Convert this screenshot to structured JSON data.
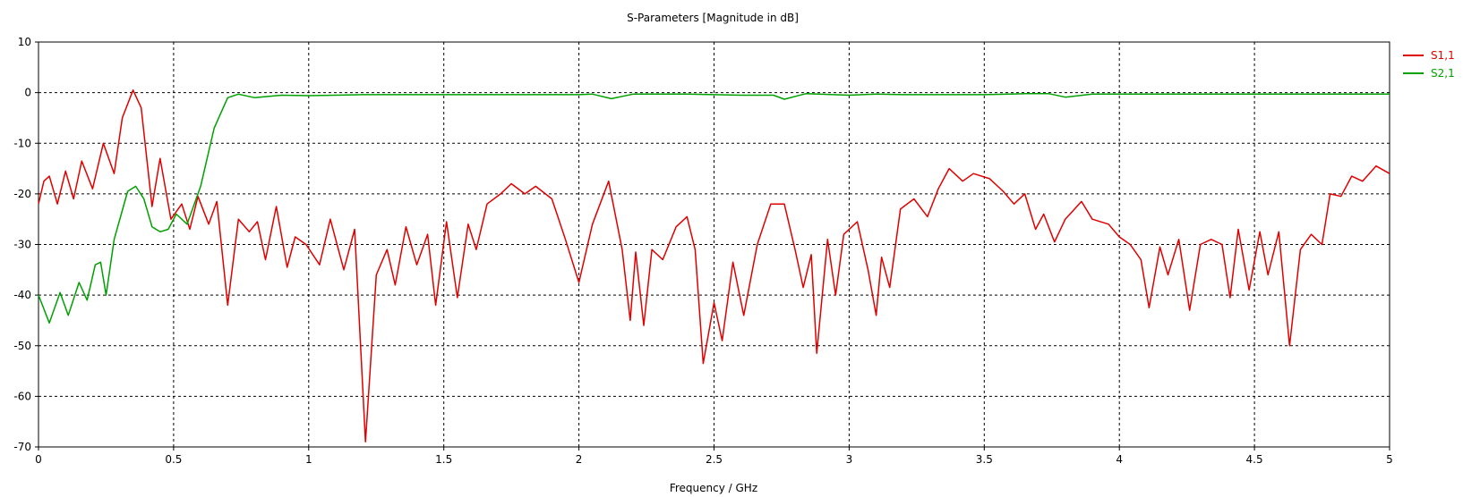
{
  "chart_data": {
    "type": "line",
    "title": "S-Parameters [Magnitude in dB]",
    "xlabel": "Frequency / GHz",
    "ylabel": "",
    "xlim": [
      0,
      5
    ],
    "ylim": [
      -70,
      10
    ],
    "xticks": [
      0,
      0.5,
      1,
      1.5,
      2,
      2.5,
      3,
      3.5,
      4,
      4.5,
      5
    ],
    "yticks": [
      10,
      0,
      -10,
      -20,
      -30,
      -40,
      -50,
      -60,
      -70
    ],
    "x_tick_labels": [
      "0",
      "0.5",
      "1",
      "1.5",
      "2",
      "2.5",
      "3",
      "3.5",
      "4",
      "4.5",
      "5"
    ],
    "y_tick_labels": [
      "10",
      "0",
      "-10",
      "-20",
      "-30",
      "-40",
      "-50",
      "-60",
      "-70"
    ],
    "grid": true,
    "legend_position": "top-right",
    "series": [
      {
        "name": "S1,1",
        "color": "#e00000",
        "points": [
          [
            0.0,
            -22
          ],
          [
            0.02,
            -17.5
          ],
          [
            0.04,
            -16.5
          ],
          [
            0.07,
            -22
          ],
          [
            0.1,
            -15.5
          ],
          [
            0.13,
            -21
          ],
          [
            0.16,
            -13.5
          ],
          [
            0.2,
            -19
          ],
          [
            0.24,
            -10
          ],
          [
            0.28,
            -16
          ],
          [
            0.31,
            -5
          ],
          [
            0.35,
            0.5
          ],
          [
            0.38,
            -3
          ],
          [
            0.42,
            -22.5
          ],
          [
            0.45,
            -13
          ],
          [
            0.49,
            -25
          ],
          [
            0.53,
            -22
          ],
          [
            0.56,
            -27
          ],
          [
            0.59,
            -20.5
          ],
          [
            0.63,
            -26
          ],
          [
            0.66,
            -21.5
          ],
          [
            0.7,
            -42
          ],
          [
            0.74,
            -25
          ],
          [
            0.78,
            -27.5
          ],
          [
            0.81,
            -25.5
          ],
          [
            0.84,
            -33
          ],
          [
            0.88,
            -22.5
          ],
          [
            0.92,
            -34.5
          ],
          [
            0.95,
            -28.5
          ],
          [
            0.99,
            -30
          ],
          [
            1.04,
            -34
          ],
          [
            1.08,
            -25
          ],
          [
            1.13,
            -35
          ],
          [
            1.17,
            -27
          ],
          [
            1.21,
            -69
          ],
          [
            1.25,
            -36
          ],
          [
            1.29,
            -31
          ],
          [
            1.32,
            -38
          ],
          [
            1.36,
            -26.5
          ],
          [
            1.4,
            -34
          ],
          [
            1.44,
            -28
          ],
          [
            1.47,
            -42
          ],
          [
            1.51,
            -25.5
          ],
          [
            1.55,
            -40.5
          ],
          [
            1.59,
            -26
          ],
          [
            1.62,
            -31
          ],
          [
            1.66,
            -22
          ],
          [
            1.71,
            -20
          ],
          [
            1.75,
            -18
          ],
          [
            1.8,
            -20
          ],
          [
            1.84,
            -18.5
          ],
          [
            1.9,
            -21
          ],
          [
            1.95,
            -29
          ],
          [
            2.0,
            -37.5
          ],
          [
            2.05,
            -26
          ],
          [
            2.11,
            -17.5
          ],
          [
            2.16,
            -31
          ],
          [
            2.19,
            -45
          ],
          [
            2.21,
            -31.5
          ],
          [
            2.24,
            -46
          ],
          [
            2.27,
            -31
          ],
          [
            2.31,
            -33
          ],
          [
            2.36,
            -26.5
          ],
          [
            2.4,
            -24.5
          ],
          [
            2.43,
            -31
          ],
          [
            2.46,
            -53.5
          ],
          [
            2.5,
            -41.5
          ],
          [
            2.53,
            -49
          ],
          [
            2.57,
            -33.5
          ],
          [
            2.61,
            -44
          ],
          [
            2.66,
            -30
          ],
          [
            2.71,
            -22
          ],
          [
            2.76,
            -22
          ],
          [
            2.8,
            -31
          ],
          [
            2.83,
            -38.5
          ],
          [
            2.86,
            -32
          ],
          [
            2.88,
            -51.5
          ],
          [
            2.92,
            -29
          ],
          [
            2.95,
            -40
          ],
          [
            2.98,
            -28
          ],
          [
            3.03,
            -25.5
          ],
          [
            3.07,
            -35
          ],
          [
            3.1,
            -44
          ],
          [
            3.12,
            -32.5
          ],
          [
            3.15,
            -38.5
          ],
          [
            3.19,
            -23
          ],
          [
            3.24,
            -21
          ],
          [
            3.29,
            -24.5
          ],
          [
            3.33,
            -19
          ],
          [
            3.37,
            -15
          ],
          [
            3.42,
            -17.5
          ],
          [
            3.46,
            -16
          ],
          [
            3.52,
            -17
          ],
          [
            3.57,
            -19.5
          ],
          [
            3.61,
            -22
          ],
          [
            3.65,
            -20
          ],
          [
            3.69,
            -27
          ],
          [
            3.72,
            -24
          ],
          [
            3.76,
            -29.5
          ],
          [
            3.8,
            -25
          ],
          [
            3.86,
            -21.5
          ],
          [
            3.9,
            -25
          ],
          [
            3.96,
            -26
          ],
          [
            4.0,
            -28.5
          ],
          [
            4.04,
            -30
          ],
          [
            4.08,
            -33
          ],
          [
            4.11,
            -42.5
          ],
          [
            4.15,
            -30.5
          ],
          [
            4.18,
            -36
          ],
          [
            4.22,
            -29
          ],
          [
            4.26,
            -43
          ],
          [
            4.3,
            -30
          ],
          [
            4.34,
            -29
          ],
          [
            4.38,
            -30
          ],
          [
            4.41,
            -40.5
          ],
          [
            4.44,
            -27
          ],
          [
            4.48,
            -39
          ],
          [
            4.52,
            -27.5
          ],
          [
            4.55,
            -36
          ],
          [
            4.59,
            -27.5
          ],
          [
            4.63,
            -50
          ],
          [
            4.67,
            -31
          ],
          [
            4.71,
            -28
          ],
          [
            4.75,
            -30
          ],
          [
            4.78,
            -20
          ],
          [
            4.82,
            -20.5
          ],
          [
            4.86,
            -16.5
          ],
          [
            4.9,
            -17.5
          ],
          [
            4.95,
            -14.5
          ],
          [
            5.0,
            -16
          ]
        ]
      },
      {
        "name": "S2,1",
        "color": "#00a000",
        "points": [
          [
            0.0,
            -40
          ],
          [
            0.04,
            -45.5
          ],
          [
            0.08,
            -39.5
          ],
          [
            0.11,
            -44
          ],
          [
            0.15,
            -37.5
          ],
          [
            0.18,
            -41
          ],
          [
            0.21,
            -34
          ],
          [
            0.23,
            -33.5
          ],
          [
            0.25,
            -40
          ],
          [
            0.28,
            -29
          ],
          [
            0.33,
            -19.5
          ],
          [
            0.36,
            -18.5
          ],
          [
            0.39,
            -21
          ],
          [
            0.42,
            -26.5
          ],
          [
            0.45,
            -27.5
          ],
          [
            0.48,
            -27
          ],
          [
            0.51,
            -24
          ],
          [
            0.55,
            -26
          ],
          [
            0.6,
            -18.5
          ],
          [
            0.65,
            -7
          ],
          [
            0.7,
            -1
          ],
          [
            0.74,
            -0.3
          ],
          [
            0.8,
            -1
          ],
          [
            0.9,
            -0.5
          ],
          [
            1.0,
            -0.6
          ],
          [
            1.2,
            -0.4
          ],
          [
            1.5,
            -0.4
          ],
          [
            1.75,
            -0.4
          ],
          [
            2.0,
            -0.4
          ],
          [
            2.05,
            -0.3
          ],
          [
            2.12,
            -1.2
          ],
          [
            2.2,
            -0.3
          ],
          [
            2.4,
            -0.3
          ],
          [
            2.6,
            -0.5
          ],
          [
            2.72,
            -0.5
          ],
          [
            2.76,
            -1.3
          ],
          [
            2.84,
            -0.2
          ],
          [
            3.0,
            -0.5
          ],
          [
            3.1,
            -0.3
          ],
          [
            3.2,
            -0.4
          ],
          [
            3.5,
            -0.4
          ],
          [
            3.65,
            -0.2
          ],
          [
            3.74,
            -0.2
          ],
          [
            3.8,
            -0.9
          ],
          [
            3.9,
            -0.3
          ],
          [
            4.0,
            -0.3
          ],
          [
            4.2,
            -0.3
          ],
          [
            4.5,
            -0.3
          ],
          [
            4.8,
            -0.3
          ],
          [
            5.0,
            -0.3
          ]
        ]
      }
    ]
  }
}
